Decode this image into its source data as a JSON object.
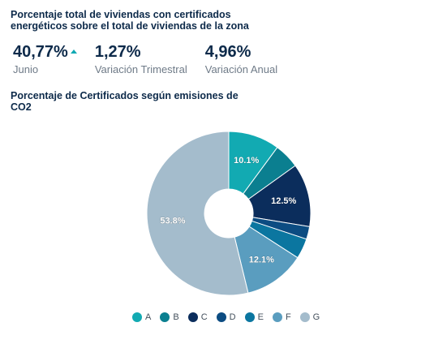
{
  "header": {
    "title": "Porcentaje total de viviendas con certificados energéticos sobre el total de viviendas de la zona"
  },
  "kpis": [
    {
      "value": "40,77%",
      "label": "Junio",
      "trend": "up"
    },
    {
      "value": "1,27%",
      "label": "Variación Trimestral"
    },
    {
      "value": "4,96%",
      "label": "Variación Anual"
    }
  ],
  "chart_data": {
    "type": "pie",
    "title": "Porcentaje de Certificados según emisiones de CO2",
    "donut": true,
    "legend_position": "bottom",
    "categories": [
      "A",
      "B",
      "C",
      "D",
      "E",
      "F",
      "G"
    ],
    "values": [
      10.1,
      5.0,
      12.5,
      2.5,
      4.0,
      12.1,
      53.8
    ],
    "data_labels": [
      "10.1%",
      "",
      "12.5%",
      "",
      "",
      "12.1%",
      "53.8%"
    ],
    "colors": [
      "#12aab2",
      "#0b7f90",
      "#0b2d5c",
      "#0c4c82",
      "#0b76a0",
      "#5a9dbf",
      "#a4bccc"
    ]
  }
}
